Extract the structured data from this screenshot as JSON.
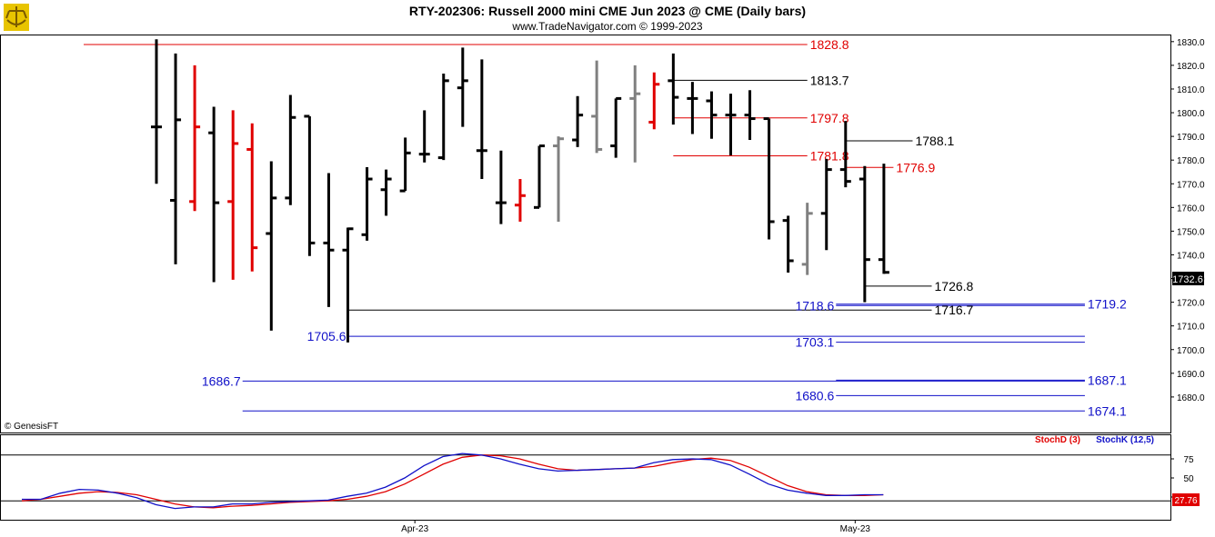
{
  "header": {
    "title": "RTY-202306:  Russell 2000 mini CME Jun 2023 @ CME  (Daily bars)",
    "subtitle": "www.TradeNavigator.com © 1999-2023",
    "watermark": "© GenesisFT"
  },
  "colors": {
    "up": "#000000",
    "down": "#e00000",
    "neutral": "#808080",
    "support": "#1010c8",
    "resistance": "#e00000",
    "stoch_d": "#e00000",
    "stoch_k": "#1010c8"
  },
  "chart_data": [
    {
      "type": "ohlc",
      "ylim": [
        1665,
        1833
      ],
      "yticks": [
        "1830.0",
        "1820.0",
        "1810.0",
        "1800.0",
        "1790.0",
        "1780.0",
        "1770.0",
        "1760.0",
        "1750.0",
        "1740.0",
        "1730.0",
        "1720.0",
        "1710.0",
        "1700.0",
        "1690.0",
        "1680.0"
      ],
      "last_price": "1732.6",
      "bars": [
        {
          "o": 1794.0,
          "h": 1831.0,
          "l": 1770.0,
          "c": 1794.0,
          "color": "up"
        },
        {
          "o": 1763.0,
          "h": 1825.0,
          "l": 1736.0,
          "c": 1797.0,
          "color": "up"
        },
        {
          "o": 1762.5,
          "h": 1820.0,
          "l": 1758.5,
          "c": 1794.0,
          "color": "down"
        },
        {
          "o": 1791.5,
          "h": 1802.5,
          "l": 1728.5,
          "c": 1762.0,
          "color": "up"
        },
        {
          "o": 1762.5,
          "h": 1801.0,
          "l": 1729.5,
          "c": 1787.0,
          "color": "down"
        },
        {
          "o": 1784.5,
          "h": 1795.5,
          "l": 1733.0,
          "c": 1743.0,
          "color": "down"
        },
        {
          "o": 1749.0,
          "h": 1779.5,
          "l": 1708.0,
          "c": 1764.0,
          "color": "up"
        },
        {
          "o": 1764.0,
          "h": 1807.5,
          "l": 1761.0,
          "c": 1798.0,
          "color": "up"
        },
        {
          "o": 1798.5,
          "h": 1798.5,
          "l": 1739.5,
          "c": 1745.0,
          "color": "up"
        },
        {
          "o": 1745.0,
          "h": 1774.5,
          "l": 1718.0,
          "c": 1742.0,
          "color": "up"
        },
        {
          "o": 1742.0,
          "h": 1751.5,
          "l": 1703.0,
          "c": 1751.0,
          "color": "up"
        },
        {
          "o": 1748.5,
          "h": 1777.0,
          "l": 1746.0,
          "c": 1772.0,
          "color": "up"
        },
        {
          "o": 1767.5,
          "h": 1776.0,
          "l": 1756.5,
          "c": 1772.0,
          "color": "up"
        },
        {
          "o": 1767.0,
          "h": 1789.5,
          "l": 1767.0,
          "c": 1783.0,
          "color": "up"
        },
        {
          "o": 1782.5,
          "h": 1801.0,
          "l": 1779.0,
          "c": 1782.5,
          "color": "up"
        },
        {
          "o": 1781.0,
          "h": 1816.5,
          "l": 1780.0,
          "c": 1813.5,
          "color": "up"
        },
        {
          "o": 1810.5,
          "h": 1827.5,
          "l": 1794.0,
          "c": 1813.5,
          "color": "up"
        },
        {
          "o": 1784.0,
          "h": 1822.5,
          "l": 1772.0,
          "c": 1784.0,
          "color": "up"
        },
        {
          "o": 1762.0,
          "h": 1784.0,
          "l": 1753.0,
          "c": 1762.0,
          "color": "up"
        },
        {
          "o": 1761.0,
          "h": 1772.0,
          "l": 1754.0,
          "c": 1765.0,
          "color": "down"
        },
        {
          "o": 1760.0,
          "h": 1786.0,
          "l": 1760.0,
          "c": 1786.0,
          "color": "up"
        },
        {
          "o": 1786.0,
          "h": 1790.0,
          "l": 1754.0,
          "c": 1789.0,
          "color": "neutral"
        },
        {
          "o": 1788.5,
          "h": 1807.0,
          "l": 1785.5,
          "c": 1799.0,
          "color": "up"
        },
        {
          "o": 1798.5,
          "h": 1822.0,
          "l": 1783.0,
          "c": 1784.5,
          "color": "neutral"
        },
        {
          "o": 1786.0,
          "h": 1806.0,
          "l": 1781.0,
          "c": 1806.0,
          "color": "up"
        },
        {
          "o": 1806.0,
          "h": 1820.0,
          "l": 1779.0,
          "c": 1808.0,
          "color": "neutral"
        },
        {
          "o": 1796.0,
          "h": 1817.0,
          "l": 1793.0,
          "c": 1812.0,
          "color": "down"
        },
        {
          "o": 1813.5,
          "h": 1825.0,
          "l": 1795.0,
          "c": 1806.5,
          "color": "up"
        },
        {
          "o": 1806.0,
          "h": 1813.0,
          "l": 1791.0,
          "c": 1806.0,
          "color": "up"
        },
        {
          "o": 1805.0,
          "h": 1809.0,
          "l": 1789.0,
          "c": 1799.0,
          "color": "up"
        },
        {
          "o": 1799.0,
          "h": 1808.0,
          "l": 1782.0,
          "c": 1799.0,
          "color": "up"
        },
        {
          "o": 1799.0,
          "h": 1809.5,
          "l": 1788.5,
          "c": 1797.5,
          "color": "up"
        },
        {
          "o": 1797.5,
          "h": 1797.5,
          "l": 1746.5,
          "c": 1754.0,
          "color": "up"
        },
        {
          "o": 1754.5,
          "h": 1756.5,
          "l": 1732.5,
          "c": 1737.5,
          "color": "up"
        },
        {
          "o": 1736.0,
          "h": 1762.0,
          "l": 1731.5,
          "c": 1757.5,
          "color": "neutral"
        },
        {
          "o": 1757.5,
          "h": 1780.5,
          "l": 1742.0,
          "c": 1776.0,
          "color": "up"
        },
        {
          "o": 1776.0,
          "h": 1796.5,
          "l": 1768.5,
          "c": 1771.0,
          "color": "up"
        },
        {
          "o": 1772.0,
          "h": 1777.5,
          "l": 1720.0,
          "c": 1738.0,
          "color": "up"
        },
        {
          "o": 1738.0,
          "h": 1778.5,
          "l": 1732.0,
          "c": 1732.6,
          "color": "up"
        }
      ],
      "levels": [
        {
          "value": 1828.8,
          "label": "1828.8",
          "kind": "resistance",
          "from": -3.8,
          "to": 34.0,
          "label_side": "right"
        },
        {
          "value": 1813.7,
          "label": "1813.7",
          "kind": "neutral",
          "from": 27.0,
          "to": 34.0,
          "label_side": "right"
        },
        {
          "value": 1797.8,
          "label": "1797.8",
          "kind": "resistance",
          "from": 27.0,
          "to": 34.0,
          "label_side": "right"
        },
        {
          "value": 1788.1,
          "label": "1788.1",
          "kind": "neutral",
          "from": 36.0,
          "to": 39.5,
          "label_side": "right"
        },
        {
          "value": 1781.8,
          "label": "1781.8",
          "kind": "resistance",
          "from": 27.0,
          "to": 34.0,
          "label_side": "right"
        },
        {
          "value": 1776.9,
          "label": "1776.9",
          "kind": "resistance",
          "from": 36.0,
          "to": 38.5,
          "label_side": "right"
        },
        {
          "value": 1726.8,
          "label": "1726.8",
          "kind": "neutral",
          "from": 37.0,
          "to": 40.5,
          "label_side": "right"
        },
        {
          "value": 1719.2,
          "label": "1719.2",
          "kind": "support",
          "from": 35.5,
          "to": 48.5,
          "label_side": "right"
        },
        {
          "value": 1718.6,
          "label": "1718.6",
          "kind": "support",
          "from": 35.5,
          "to": 48.5,
          "label_side": "none"
        },
        {
          "value": 1716.7,
          "label": "1716.7",
          "kind": "neutral",
          "from": 10.0,
          "to": 40.5,
          "label_side": "right"
        },
        {
          "value": 1705.6,
          "label": "1705.6",
          "kind": "support",
          "from": 10.0,
          "to": 48.5,
          "label_side": "left"
        },
        {
          "value": 1703.1,
          "label": "1703.1",
          "kind": "support",
          "from": 35.5,
          "to": 48.5,
          "label_side": "left"
        },
        {
          "value": 1687.1,
          "label": "1687.1",
          "kind": "support",
          "from": 35.5,
          "to": 48.5,
          "label_side": "right"
        },
        {
          "value": 1686.7,
          "label": "1686.7",
          "kind": "support",
          "from": 4.5,
          "to": 48.5,
          "label_side": "left"
        },
        {
          "value": 1680.6,
          "label": "1680.6",
          "kind": "support",
          "from": 35.5,
          "to": 48.5,
          "label_side": "left"
        },
        {
          "value": 1674.1,
          "label": "1674.1",
          "kind": "support",
          "from": 4.5,
          "to": 48.5,
          "label_side": "right"
        }
      ],
      "label_texts": [
        "1828.8",
        "1813.7",
        "1797.8",
        "1788.1",
        "1781.8",
        "1776.9",
        "1726.8",
        "1719.2",
        "1718.6",
        "1716.7",
        "1705.6",
        "1703.1",
        "1687.1",
        "1686.7",
        "1680.6",
        "1674.1"
      ]
    },
    {
      "type": "line",
      "ylim": [
        0,
        100
      ],
      "yticks": [
        "75",
        "50",
        "25"
      ],
      "reference_lines": [
        80,
        20
      ],
      "x_labels": [
        {
          "label": "Apr-23",
          "bar": 13.5
        },
        {
          "label": "May-23",
          "bar": 36.5
        }
      ],
      "legend": {
        "d": "StochD (3)",
        "k": "StochK (12,5)"
      },
      "last_value": "27.76",
      "series": [
        {
          "name": "StochD (3)",
          "color": "stoch_d",
          "values": [
            20,
            22,
            26,
            30,
            32,
            31,
            28,
            22,
            16,
            12,
            11,
            13,
            14,
            16,
            18,
            19,
            20,
            22,
            26,
            32,
            42,
            55,
            68,
            77,
            80,
            79,
            75,
            68,
            62,
            60,
            61,
            62,
            63,
            65,
            70,
            74,
            76,
            73,
            64,
            52,
            40,
            32,
            28,
            27,
            27,
            28
          ]
        },
        {
          "name": "StochK (12,5)",
          "color": "stoch_k",
          "values": [
            22,
            22,
            30,
            35,
            34,
            30,
            24,
            15,
            10,
            12,
            12,
            16,
            16,
            18,
            19,
            20,
            21,
            26,
            30,
            38,
            50,
            66,
            78,
            82,
            80,
            75,
            68,
            62,
            59,
            60,
            61,
            62,
            63,
            70,
            74,
            75,
            74,
            67,
            55,
            42,
            34,
            30,
            27,
            27,
            28,
            28
          ]
        }
      ]
    }
  ]
}
